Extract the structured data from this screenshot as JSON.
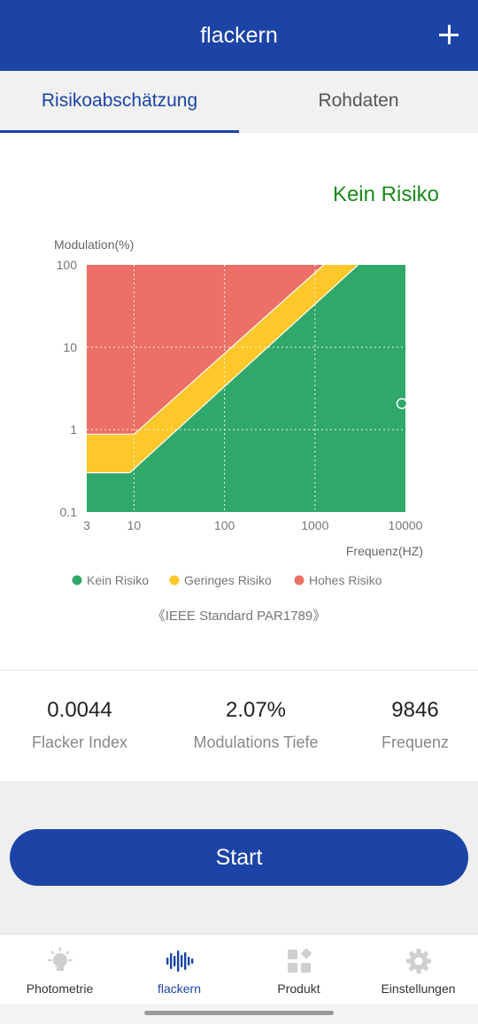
{
  "header": {
    "title": "flackern",
    "add_icon": "plus-icon"
  },
  "tabs": [
    {
      "label": "Risikoabschätzung",
      "active": true
    },
    {
      "label": "Rohdaten",
      "active": false
    }
  ],
  "status": {
    "label": "Kein Risiko",
    "color": "#1a8a1a"
  },
  "chart_data": {
    "type": "area",
    "ylabel": "Modulation(%)",
    "xlabel": "Frequenz(HZ)",
    "x_scale": "log",
    "y_scale": "log",
    "xlim": [
      3,
      10000
    ],
    "ylim": [
      0.1,
      100
    ],
    "x_ticks": [
      "3",
      "10",
      "100",
      "1000",
      "10000"
    ],
    "y_ticks": [
      "100",
      "10",
      "1",
      "0.1"
    ],
    "grid": "dotted",
    "regions": [
      {
        "name": "Hohes Risiko",
        "color": "#ec7066"
      },
      {
        "name": "Geringes Risiko",
        "color": "#fec72a"
      },
      {
        "name": "Kein Risiko",
        "color": "#2fa86a"
      }
    ],
    "low_risk_boundary": [
      [
        3,
        0.3
      ],
      [
        9,
        0.3
      ],
      [
        3000,
        100
      ]
    ],
    "high_risk_boundary": [
      [
        3,
        0.88
      ],
      [
        10,
        0.88
      ],
      [
        1250,
        100
      ]
    ],
    "measurement": {
      "x": 9846,
      "y": 2.07
    },
    "legend": [
      "Kein Risiko",
      "Geringes Risiko",
      "Hohes Risiko"
    ],
    "legend_placement": "bottom"
  },
  "standard_note": "《IEEE Standard PAR1789》",
  "metrics": [
    {
      "value": "0.0044",
      "label": "Flacker Index"
    },
    {
      "value": "2.07%",
      "label": "Modulations Tiefe"
    },
    {
      "value": "9846",
      "label": "Frequenz"
    }
  ],
  "start_button": "Start",
  "bottom_nav": [
    {
      "label": "Photometrie",
      "icon": "lightbulb-icon",
      "active": false
    },
    {
      "label": "flackern",
      "icon": "waveform-icon",
      "active": true
    },
    {
      "label": "Produkt",
      "icon": "grid-icon",
      "active": false
    },
    {
      "label": "Einstellungen",
      "icon": "gear-icon",
      "active": false
    }
  ],
  "colors": {
    "primary": "#1b44a6",
    "green": "#2fa86a",
    "yellow": "#fec72a",
    "red": "#ec7066"
  }
}
